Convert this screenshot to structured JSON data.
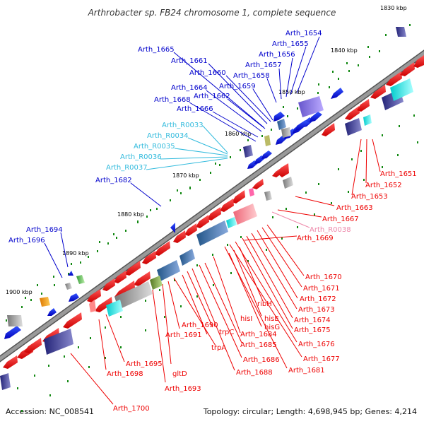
{
  "title": "Arthrobacter sp. FB24 chromosome 1, complete sequence",
  "accession_label": "Accession: NC_008541",
  "topology_label": "Topology: circular; Length: 4,698,945 bp; Genes: 4,214",
  "colors": {
    "backbone": "#8c8c8c",
    "forward_gene": "#0000ee",
    "reverse_gene": "#ee0000",
    "rna_label": "#33bbdd",
    "pseudo_label": "#ee88aa",
    "tick_green": "#118811"
  },
  "scale_marks": [
    "1830 kbp",
    "1840 kbp",
    "1850 kbp",
    "1860 kbp",
    "1870 kbp",
    "1880 kbp",
    "1890 kbp",
    "1900 kbp"
  ],
  "forward_labels": [
    "Arth_1654",
    "Arth_1655",
    "Arth_1656",
    "Arth_1657",
    "Arth_1658",
    "Arth_1659",
    "Arth_1660",
    "Arth_1661",
    "Arth_1662",
    "Arth_1664",
    "Arth_1665",
    "Arth_1666",
    "Arth_1668",
    "Arth_1682",
    "Arth_1694",
    "Arth_1696"
  ],
  "rna_labels": [
    "Arth_R0033",
    "Arth_R0034",
    "Arth_R0035",
    "Arth_R0036",
    "Arth_R0037"
  ],
  "reverse_labels": [
    "Arth_1651",
    "Arth_1652",
    "Arth_1653",
    "Arth_1663",
    "Arth_1667",
    "Arth_1669",
    "Arth_1670",
    "Arth_1671",
    "Arth_1672",
    "Arth_1673",
    "Arth_1674",
    "Arth_1675",
    "Arth_1676",
    "Arth_1677",
    "Arth_1681",
    "Arth_1684",
    "Arth_1685",
    "Arth_1686",
    "Arth_1688",
    "Arth_1690",
    "Arth_1691",
    "Arth_1693",
    "Arth_1695",
    "Arth_1698",
    "Arth_1700",
    "ribH",
    "hisI",
    "hisE",
    "hisG",
    "trpC",
    "trpA",
    "gltD"
  ],
  "pseudo_labels": [
    "Arth_R0038"
  ]
}
